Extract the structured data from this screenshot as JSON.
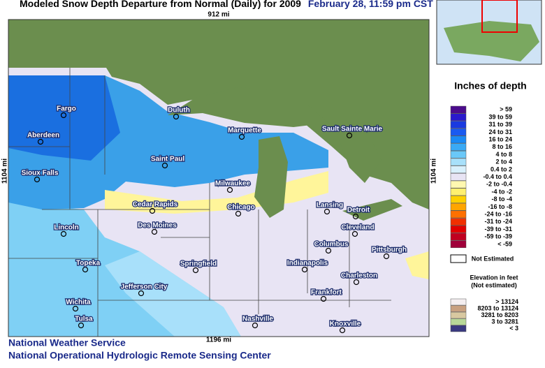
{
  "header": {
    "title": "Modeled Snow Depth Departure from Normal (Daily) for 2009",
    "date": "February 28, 11:59 pm CST"
  },
  "map": {
    "top_distance": "912 mi",
    "bottom_distance": "1196 mi",
    "left_distance": "1104 mi",
    "right_distance": "1104 mi",
    "cities": [
      "Fargo",
      "Duluth",
      "Aberdeen",
      "Marquette",
      "Sault Sainte Marie",
      "Saint Paul",
      "Sioux Falls",
      "Milwaukee",
      "Cedar Rapids",
      "Chicago",
      "Lansing",
      "Detroit",
      "Des Moines",
      "Lincoln",
      "Cleveland",
      "Columbus",
      "Pittsburgh",
      "Topeka",
      "Springfield",
      "Indianapolis",
      "Charleston",
      "Jefferson City",
      "Frankfort",
      "Wichita",
      "Tulsa",
      "Nashville",
      "Knoxville"
    ]
  },
  "legend": {
    "title": "Inches of depth",
    "rows": [
      {
        "label": ">  59",
        "color": "#4b0c8c"
      },
      {
        "label": "39  to  59",
        "color": "#2a1acc"
      },
      {
        "label": "31  to  39",
        "color": "#1a3ae0"
      },
      {
        "label": "24  to  31",
        "color": "#1a5af0"
      },
      {
        "label": "16  to  24",
        "color": "#1a8af5"
      },
      {
        "label": "8  to  16",
        "color": "#3aaaf5"
      },
      {
        "label": "4  to  8",
        "color": "#6ac8f8"
      },
      {
        "label": "2  to  4",
        "color": "#a8e0fa"
      },
      {
        "label": "0.4  to  2",
        "color": "#d8f0fc"
      },
      {
        "label": "-0.4  to  0.4",
        "color": "#e8e4f4"
      },
      {
        "label": "-2  to  -0.4",
        "color": "#fff8b0"
      },
      {
        "label": "-4  to  -2",
        "color": "#fff070"
      },
      {
        "label": "-8  to  -4",
        "color": "#ffd000"
      },
      {
        "label": "-16  to  -8",
        "color": "#ffa500"
      },
      {
        "label": "-24  to  -16",
        "color": "#ff7000"
      },
      {
        "label": "-31  to  -24",
        "color": "#f03000"
      },
      {
        "label": "-39  to  -31",
        "color": "#e00000"
      },
      {
        "label": "-59  to  -39",
        "color": "#c00020"
      },
      {
        "label": "<  -59",
        "color": "#a0003a"
      }
    ],
    "not_estimated": "Not Estimated",
    "elevation_title": "Elevation in feet",
    "elevation_subtitle": "(Not estimated)",
    "elevation_rows": [
      {
        "label": ">  13124",
        "color": "#f4eef0"
      },
      {
        "label": "8203  to  13124",
        "color": "#c8a080"
      },
      {
        "label": "3281  to  8203",
        "color": "#d8c8a0"
      },
      {
        "label": "3  to  3281",
        "color": "#b8d898"
      },
      {
        "label": "<  3",
        "color": "#3a3a80"
      }
    ]
  },
  "footer": {
    "line1": "National Weather Service",
    "line2": "National Operational Hydrologic Remote Sensing Center"
  }
}
